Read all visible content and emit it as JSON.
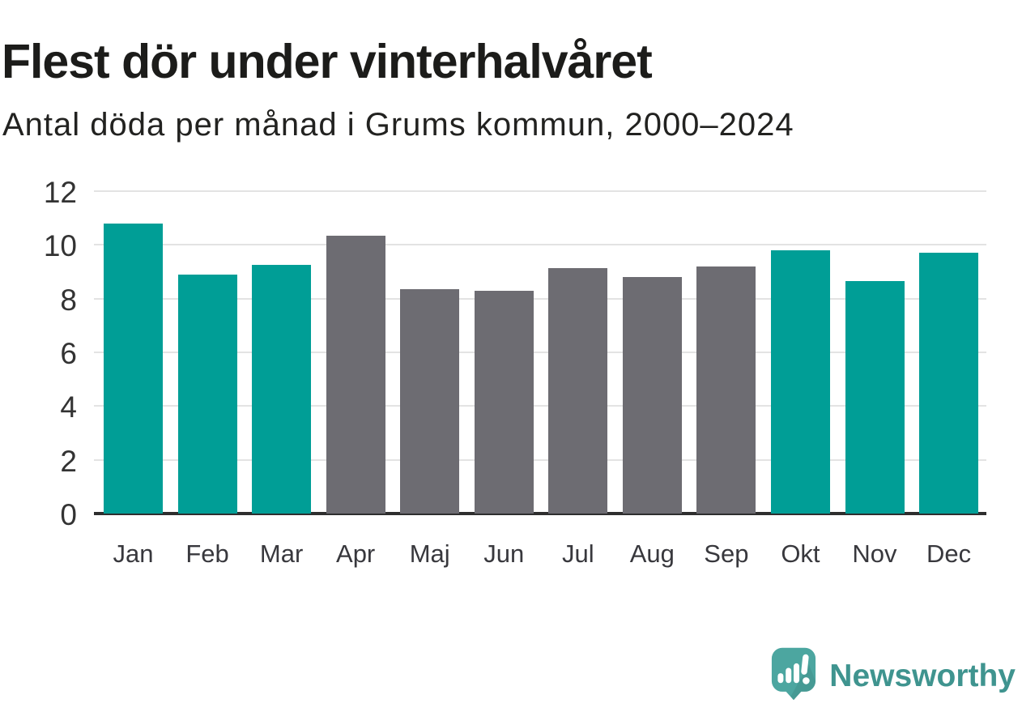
{
  "header": {
    "title": "Flest dör under vinterhalvåret",
    "subtitle": "Antal döda per månad i Grums kommun, 2000–2024"
  },
  "colors": {
    "highlight": "#009e96",
    "base": "#6d6c72",
    "gridline": "#e3e3e3",
    "axis": "#2e2e2e",
    "tick_label": "#333333",
    "logo_teal": "#4ca6a0",
    "logo_text_teal": "#3f948f"
  },
  "chart_data": {
    "type": "bar",
    "title": "Flest dör under vinterhalvåret",
    "subtitle": "Antal döda per månad i Grums kommun, 2000–2024",
    "categories": [
      "Jan",
      "Feb",
      "Mar",
      "Apr",
      "Maj",
      "Jun",
      "Jul",
      "Aug",
      "Sep",
      "Okt",
      "Nov",
      "Dec"
    ],
    "values": [
      10.8,
      8.9,
      9.25,
      10.35,
      8.35,
      8.3,
      9.15,
      8.8,
      9.2,
      9.8,
      8.65,
      9.7
    ],
    "bar_color_roles": [
      "highlight",
      "highlight",
      "highlight",
      "base",
      "base",
      "base",
      "base",
      "base",
      "base",
      "highlight",
      "highlight",
      "highlight"
    ],
    "xlabel": "",
    "ylabel": "",
    "ylim": [
      0,
      12
    ],
    "yticks": [
      0,
      2,
      4,
      6,
      8,
      10,
      12
    ],
    "grid": true,
    "legend": false
  },
  "branding": {
    "logo_text": "Newsworthy",
    "logo_icon": "newsworthy-speech-bubble-chart-icon"
  }
}
